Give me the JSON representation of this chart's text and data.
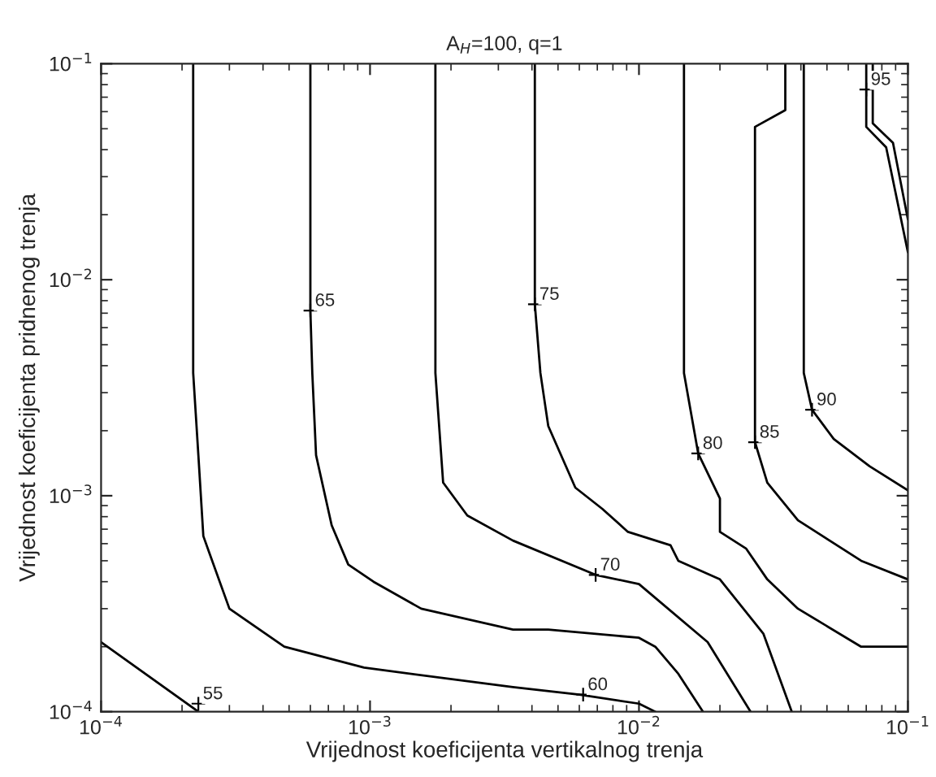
{
  "chart_data": {
    "type": "line",
    "title": "A$_{H}$=100, q=1",
    "xlabel": "Vrijednost koeficijenta vertikalnog trenja",
    "ylabel": "Vrijednost koeficijenta pridnenog trenja",
    "log": "xy",
    "grid": false,
    "line_style": "solid",
    "marker": "none",
    "xlim": [
      0.0001,
      0.1
    ],
    "ylim": [
      0.0001,
      0.1
    ],
    "xticks": [
      {
        "value": 0.0001,
        "label": "10$^{−4}$"
      },
      {
        "value": 0.001,
        "label": "10$^{−3}$"
      },
      {
        "value": 0.01,
        "label": "10$^{−2}$"
      },
      {
        "value": 0.1,
        "label": "10$^{−1}$"
      }
    ],
    "yticks": [
      {
        "value": 0.0001,
        "label": "10$^{−4}$"
      },
      {
        "value": 0.001,
        "label": "10$^{−3}$"
      },
      {
        "value": 0.01,
        "label": "10$^{−2}$"
      },
      {
        "value": 0.1,
        "label": "10$^{−1}$"
      }
    ],
    "series": [
      {
        "color": "#000000",
        "x": [
          0.0001,
          0.00023
        ],
        "values": [
          0.00021,
          0.0001
        ]
      },
      {
        "color": "#000000",
        "x": [
          0.00022,
          0.00022,
          0.00023,
          0.00024,
          0.0003,
          0.00048,
          0.00095,
          0.0034,
          0.006,
          0.01,
          0.0115
        ],
        "values": [
          0.1,
          0.0037,
          0.00154,
          0.00065,
          0.0003,
          0.0002,
          0.00016,
          0.00013,
          0.00012,
          0.000109,
          0.0001
        ]
      },
      {
        "color": "#000000",
        "x": [
          0.0006,
          0.0006,
          0.00061,
          0.00063,
          0.00072,
          0.00083,
          0.00103,
          0.00155,
          0.0034,
          0.0046,
          0.01,
          0.0115,
          0.014,
          0.0173
        ],
        "values": [
          0.1,
          0.0072,
          0.0037,
          0.00154,
          0.00073,
          0.00048,
          0.0004,
          0.0003,
          0.00024,
          0.00024,
          0.00022,
          0.0002,
          0.00015,
          0.0001
        ]
      },
      {
        "color": "#000000",
        "x": [
          0.00175,
          0.00175,
          0.00187,
          0.0023,
          0.0034,
          0.0069,
          0.01,
          0.018,
          0.026
        ],
        "values": [
          0.1,
          0.0037,
          0.00115,
          0.00081,
          0.00062,
          0.00043,
          0.00039,
          0.00021,
          0.0001
        ]
      },
      {
        "color": "#000000",
        "x": [
          0.0041,
          0.0041,
          0.0043,
          0.0046,
          0.0058,
          0.0073,
          0.0091,
          0.0131,
          0.014,
          0.02,
          0.029,
          0.037
        ],
        "values": [
          0.1,
          0.0077,
          0.0037,
          0.0021,
          0.00109,
          0.00087,
          0.00068,
          0.00059,
          0.0005,
          0.00041,
          0.00023,
          0.0001
        ]
      },
      {
        "color": "#000000",
        "x": [
          0.0147,
          0.0147,
          0.0166,
          0.02,
          0.02,
          0.025,
          0.03,
          0.039,
          0.067,
          0.1
        ],
        "values": [
          0.1,
          0.0037,
          0.00157,
          0.00097,
          0.00068,
          0.00057,
          0.00041,
          0.0003,
          0.0002,
          0.0002
        ]
      },
      {
        "color": "#000000",
        "x": [
          0.035,
          0.035,
          0.027,
          0.027,
          0.027,
          0.03,
          0.039,
          0.067,
          0.1
        ],
        "values": [
          0.1,
          0.061,
          0.051,
          0.0037,
          0.00177,
          0.00115,
          0.00077,
          0.0005,
          0.00041
        ]
      },
      {
        "color": "#000000",
        "x": [
          0.041,
          0.041,
          0.044,
          0.053,
          0.072,
          0.1
        ],
        "values": [
          0.1,
          0.0037,
          0.0025,
          0.00183,
          0.00137,
          0.00106
        ]
      },
      {
        "color": "#000000",
        "x": [
          0.07,
          0.07,
          0.083,
          0.1
        ],
        "values": [
          0.1,
          0.051,
          0.041,
          0.0134
        ]
      },
      {
        "color": "#000000",
        "x": [
          0.074,
          0.074,
          0.088,
          0.1
        ],
        "values": [
          0.1,
          0.053,
          0.043,
          0.019
        ]
      }
    ],
    "annotations": [
      {
        "text": "55",
        "x": 0.00023,
        "y": 0.000109
      },
      {
        "text": "60",
        "x": 0.0062,
        "y": 0.00012
      },
      {
        "text": "65",
        "x": 0.0006,
        "y": 0.0072
      },
      {
        "text": "70",
        "x": 0.0069,
        "y": 0.00043
      },
      {
        "text": "75",
        "x": 0.0041,
        "y": 0.0077
      },
      {
        "text": "80",
        "x": 0.0166,
        "y": 0.00157
      },
      {
        "text": "85",
        "x": 0.027,
        "y": 0.00177
      },
      {
        "text": "90",
        "x": 0.044,
        "y": 0.0025
      },
      {
        "text": "95",
        "x": 0.07,
        "y": 0.076
      }
    ]
  }
}
